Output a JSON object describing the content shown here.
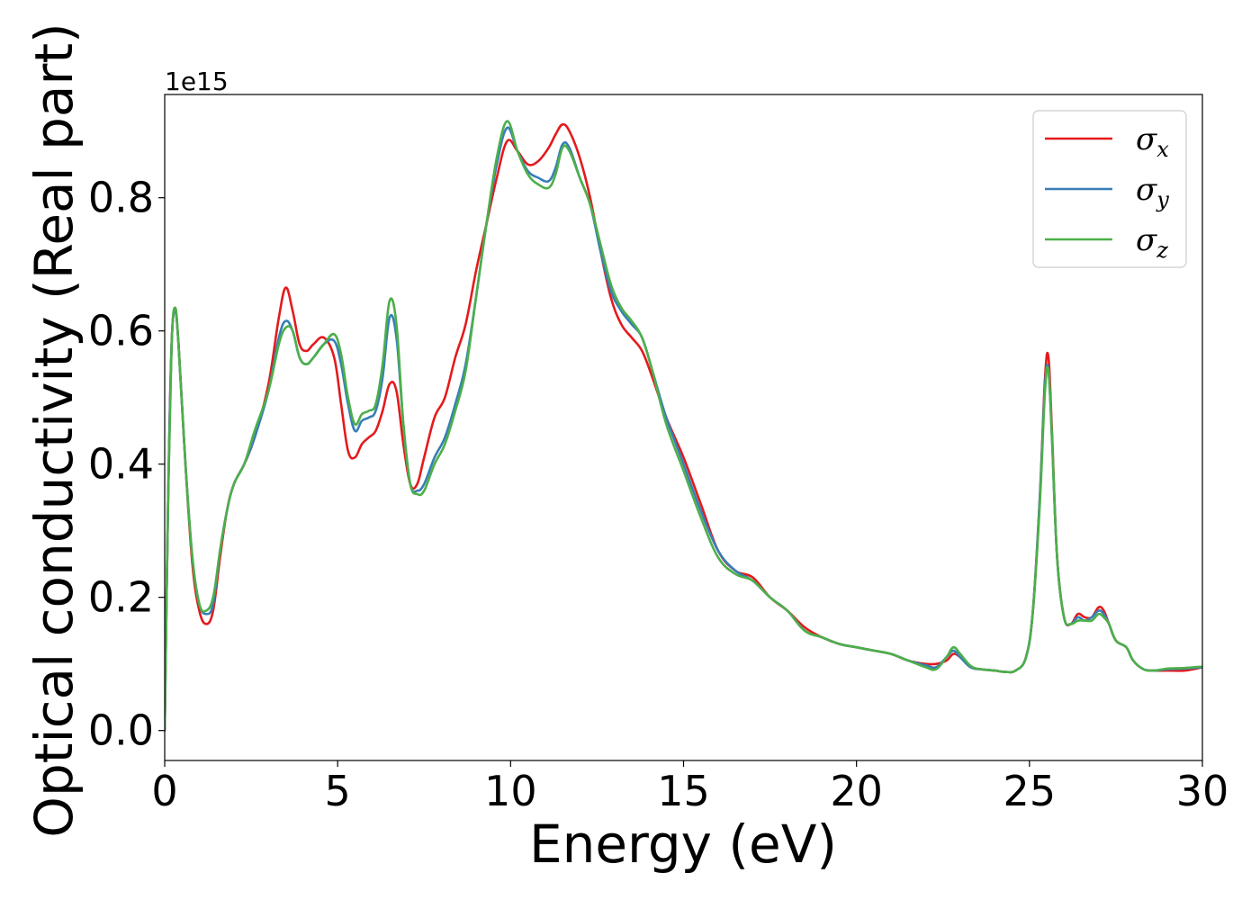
{
  "chart_data": {
    "type": "line",
    "xlabel": "Energy (eV)",
    "ylabel": "Optical conductivity (Real part)",
    "y_offset_label": "1e15",
    "xlim": [
      0,
      30
    ],
    "ylim": [
      -0.045,
      0.955
    ],
    "xticks": [
      0,
      5,
      10,
      15,
      20,
      25,
      30
    ],
    "xtick_labels": [
      "0",
      "5",
      "10",
      "15",
      "20",
      "25",
      "30"
    ],
    "yticks": [
      0.0,
      0.2,
      0.4,
      0.6,
      0.8
    ],
    "ytick_labels": [
      "0.0",
      "0.2",
      "0.4",
      "0.6",
      "0.8"
    ],
    "grid": false,
    "legend_position": "top-right",
    "series": [
      {
        "name": "σx",
        "legend_symbol": "σ",
        "legend_sub": "x",
        "color": "#e41a1c",
        "x": [
          0,
          0.1,
          0.2,
          0.3,
          0.4,
          0.6,
          0.8,
          1.0,
          1.2,
          1.4,
          1.6,
          1.8,
          2.0,
          2.3,
          2.6,
          3.0,
          3.3,
          3.5,
          3.7,
          3.9,
          4.1,
          4.3,
          4.6,
          4.9,
          5.1,
          5.3,
          5.5,
          5.7,
          5.9,
          6.1,
          6.3,
          6.5,
          6.7,
          6.9,
          7.1,
          7.3,
          7.5,
          7.8,
          8.1,
          8.4,
          8.7,
          9.0,
          9.3,
          9.6,
          9.9,
          10.2,
          10.5,
          10.8,
          11.1,
          11.3,
          11.5,
          11.7,
          12.0,
          12.3,
          12.6,
          12.9,
          13.2,
          13.5,
          13.8,
          14.1,
          14.5,
          15.0,
          15.5,
          16.0,
          16.5,
          17.0,
          17.5,
          18.0,
          18.5,
          19.0,
          19.5,
          20.0,
          20.5,
          21.0,
          21.5,
          22.0,
          22.3,
          22.6,
          22.8,
          23.0,
          23.3,
          23.6,
          24.0,
          24.3,
          24.6,
          24.9,
          25.1,
          25.3,
          25.45,
          25.55,
          25.65,
          25.8,
          26.0,
          26.2,
          26.4,
          26.6,
          26.8,
          27.0,
          27.15,
          27.3,
          27.5,
          27.8,
          28.0,
          28.3,
          28.6,
          29.0,
          29.5,
          30.0
        ],
        "y": [
          0.0,
          0.35,
          0.58,
          0.63,
          0.58,
          0.4,
          0.25,
          0.18,
          0.16,
          0.18,
          0.26,
          0.33,
          0.37,
          0.4,
          0.44,
          0.52,
          0.62,
          0.665,
          0.63,
          0.58,
          0.57,
          0.58,
          0.59,
          0.56,
          0.49,
          0.42,
          0.41,
          0.43,
          0.44,
          0.45,
          0.48,
          0.52,
          0.51,
          0.43,
          0.37,
          0.37,
          0.41,
          0.47,
          0.5,
          0.56,
          0.61,
          0.69,
          0.76,
          0.83,
          0.885,
          0.87,
          0.85,
          0.855,
          0.875,
          0.895,
          0.91,
          0.9,
          0.86,
          0.8,
          0.72,
          0.65,
          0.61,
          0.59,
          0.57,
          0.53,
          0.47,
          0.41,
          0.34,
          0.27,
          0.24,
          0.23,
          0.2,
          0.18,
          0.155,
          0.14,
          0.13,
          0.125,
          0.12,
          0.115,
          0.105,
          0.1,
          0.1,
          0.105,
          0.115,
          0.11,
          0.095,
          0.092,
          0.09,
          0.088,
          0.09,
          0.11,
          0.18,
          0.35,
          0.53,
          0.56,
          0.45,
          0.26,
          0.17,
          0.16,
          0.175,
          0.17,
          0.17,
          0.185,
          0.18,
          0.16,
          0.135,
          0.125,
          0.105,
          0.092,
          0.09,
          0.09,
          0.09,
          0.095
        ]
      },
      {
        "name": "σy",
        "legend_symbol": "σ",
        "legend_sub": "y",
        "color": "#377eb8",
        "x": [
          0,
          0.1,
          0.2,
          0.3,
          0.4,
          0.6,
          0.8,
          1.0,
          1.2,
          1.4,
          1.6,
          1.8,
          2.0,
          2.3,
          2.6,
          3.0,
          3.3,
          3.5,
          3.7,
          3.9,
          4.1,
          4.3,
          4.6,
          4.9,
          5.1,
          5.3,
          5.5,
          5.7,
          5.9,
          6.1,
          6.3,
          6.5,
          6.7,
          6.9,
          7.1,
          7.3,
          7.5,
          7.8,
          8.1,
          8.4,
          8.7,
          9.0,
          9.3,
          9.6,
          9.9,
          10.2,
          10.5,
          10.8,
          11.1,
          11.3,
          11.5,
          11.7,
          12.0,
          12.3,
          12.6,
          12.9,
          13.2,
          13.5,
          13.8,
          14.1,
          14.5,
          15.0,
          15.5,
          16.0,
          16.5,
          17.0,
          17.5,
          18.0,
          18.5,
          19.0,
          19.5,
          20.0,
          20.5,
          21.0,
          21.5,
          22.0,
          22.3,
          22.6,
          22.8,
          23.0,
          23.3,
          23.6,
          24.0,
          24.3,
          24.6,
          24.9,
          25.1,
          25.3,
          25.45,
          25.55,
          25.65,
          25.8,
          26.0,
          26.2,
          26.4,
          26.6,
          26.8,
          27.0,
          27.15,
          27.3,
          27.5,
          27.8,
          28.0,
          28.3,
          28.6,
          29.0,
          29.5,
          30.0
        ],
        "y": [
          0.0,
          0.35,
          0.58,
          0.63,
          0.58,
          0.4,
          0.26,
          0.19,
          0.175,
          0.19,
          0.27,
          0.33,
          0.37,
          0.4,
          0.44,
          0.51,
          0.59,
          0.615,
          0.6,
          0.56,
          0.55,
          0.56,
          0.58,
          0.585,
          0.55,
          0.49,
          0.45,
          0.465,
          0.47,
          0.48,
          0.53,
          0.62,
          0.59,
          0.46,
          0.37,
          0.36,
          0.37,
          0.41,
          0.44,
          0.49,
          0.55,
          0.65,
          0.76,
          0.85,
          0.905,
          0.87,
          0.84,
          0.83,
          0.825,
          0.845,
          0.88,
          0.875,
          0.83,
          0.79,
          0.72,
          0.66,
          0.63,
          0.61,
          0.59,
          0.54,
          0.47,
          0.4,
          0.33,
          0.27,
          0.24,
          0.225,
          0.2,
          0.18,
          0.15,
          0.14,
          0.13,
          0.125,
          0.12,
          0.115,
          0.105,
          0.098,
          0.095,
          0.11,
          0.12,
          0.11,
          0.095,
          0.092,
          0.09,
          0.088,
          0.09,
          0.11,
          0.18,
          0.35,
          0.52,
          0.54,
          0.44,
          0.26,
          0.17,
          0.16,
          0.17,
          0.165,
          0.17,
          0.18,
          0.175,
          0.16,
          0.135,
          0.125,
          0.105,
          0.092,
          0.09,
          0.092,
          0.093,
          0.095
        ]
      },
      {
        "name": "σz",
        "legend_symbol": "σ",
        "legend_sub": "z",
        "color": "#4daf4a",
        "x": [
          0,
          0.1,
          0.2,
          0.3,
          0.4,
          0.6,
          0.8,
          1.0,
          1.2,
          1.4,
          1.6,
          1.8,
          2.0,
          2.3,
          2.6,
          3.0,
          3.3,
          3.5,
          3.7,
          3.9,
          4.1,
          4.3,
          4.6,
          4.9,
          5.1,
          5.3,
          5.5,
          5.7,
          5.9,
          6.1,
          6.3,
          6.5,
          6.7,
          6.9,
          7.1,
          7.3,
          7.5,
          7.8,
          8.1,
          8.4,
          8.7,
          9.0,
          9.3,
          9.6,
          9.9,
          10.2,
          10.5,
          10.8,
          11.1,
          11.3,
          11.5,
          11.7,
          12.0,
          12.3,
          12.6,
          12.9,
          13.2,
          13.5,
          13.8,
          14.1,
          14.5,
          15.0,
          15.5,
          16.0,
          16.5,
          17.0,
          17.5,
          18.0,
          18.5,
          19.0,
          19.5,
          20.0,
          20.5,
          21.0,
          21.5,
          22.0,
          22.3,
          22.6,
          22.8,
          23.0,
          23.3,
          23.6,
          24.0,
          24.3,
          24.6,
          24.9,
          25.1,
          25.3,
          25.45,
          25.55,
          25.65,
          25.8,
          26.0,
          26.2,
          26.4,
          26.6,
          26.8,
          27.0,
          27.15,
          27.3,
          27.5,
          27.8,
          28.0,
          28.3,
          28.6,
          29.0,
          29.5,
          30.0
        ],
        "y": [
          0.0,
          0.35,
          0.58,
          0.635,
          0.58,
          0.4,
          0.26,
          0.19,
          0.18,
          0.2,
          0.27,
          0.33,
          0.37,
          0.4,
          0.45,
          0.51,
          0.58,
          0.605,
          0.6,
          0.56,
          0.55,
          0.56,
          0.58,
          0.595,
          0.565,
          0.5,
          0.46,
          0.475,
          0.48,
          0.49,
          0.55,
          0.645,
          0.61,
          0.46,
          0.37,
          0.355,
          0.36,
          0.4,
          0.43,
          0.48,
          0.54,
          0.65,
          0.76,
          0.86,
          0.915,
          0.87,
          0.835,
          0.82,
          0.815,
          0.835,
          0.875,
          0.87,
          0.83,
          0.79,
          0.73,
          0.67,
          0.635,
          0.615,
          0.59,
          0.54,
          0.46,
          0.39,
          0.32,
          0.26,
          0.235,
          0.225,
          0.2,
          0.18,
          0.15,
          0.14,
          0.13,
          0.125,
          0.12,
          0.115,
          0.105,
          0.095,
          0.092,
          0.11,
          0.125,
          0.115,
          0.097,
          0.092,
          0.09,
          0.088,
          0.09,
          0.11,
          0.18,
          0.34,
          0.51,
          0.54,
          0.44,
          0.26,
          0.17,
          0.16,
          0.165,
          0.165,
          0.165,
          0.175,
          0.17,
          0.16,
          0.135,
          0.125,
          0.105,
          0.092,
          0.09,
          0.093,
          0.094,
          0.096
        ]
      }
    ]
  }
}
